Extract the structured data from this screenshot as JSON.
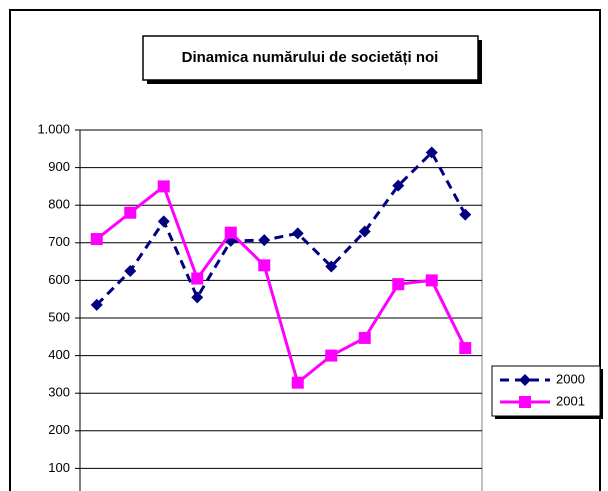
{
  "chart_data": {
    "type": "line",
    "title": "Dinamica numărului de societăți noi",
    "series": [
      {
        "name": "2000",
        "color": "#000080",
        "dashed": true,
        "marker": "diamond",
        "values": [
          535,
          625,
          757,
          555,
          705,
          707,
          725,
          637,
          730,
          852,
          940,
          775
        ]
      },
      {
        "name": "2001",
        "color": "#ff00ff",
        "dashed": false,
        "marker": "square",
        "values": [
          710,
          780,
          850,
          605,
          727,
          640,
          328,
          400,
          447,
          590,
          600,
          420
        ]
      }
    ],
    "ylim": [
      0,
      1000
    ],
    "yticks": [
      100,
      200,
      300,
      400,
      500,
      600,
      700,
      800,
      900,
      {
        "value": 1000,
        "label": "1.000"
      }
    ],
    "grid": true,
    "legend": "right"
  }
}
